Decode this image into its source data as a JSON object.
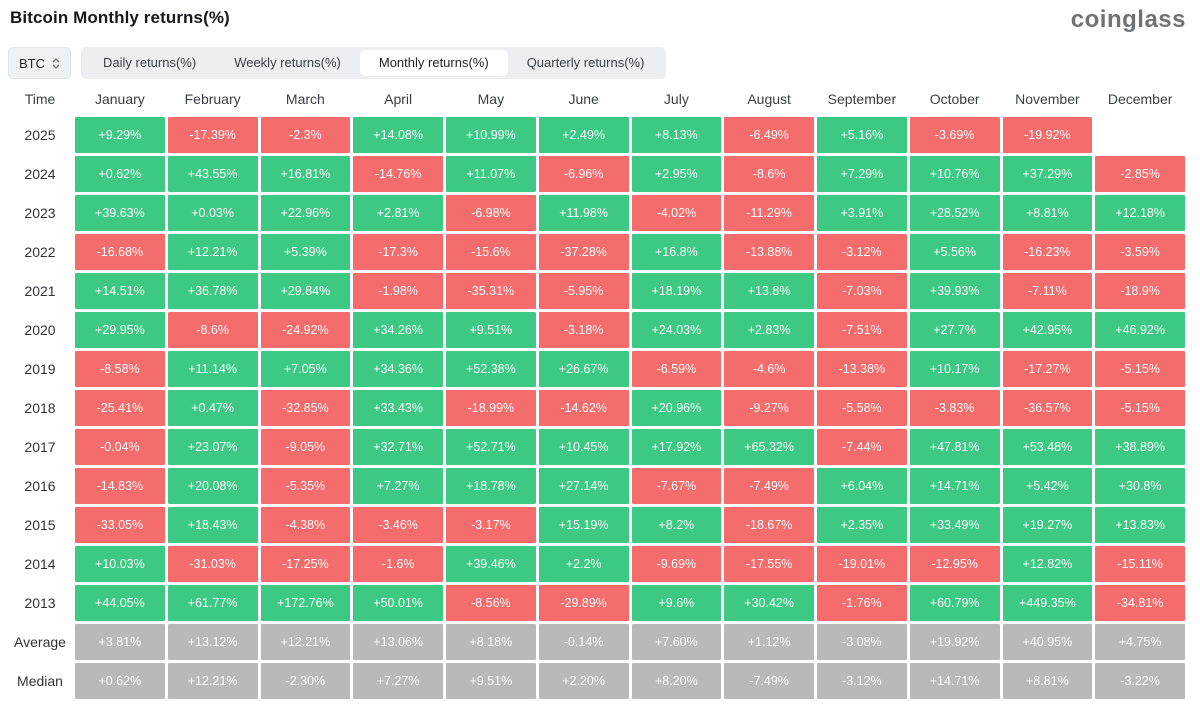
{
  "page": {
    "title": "Bitcoin Monthly returns(%)",
    "logo": "coinglass"
  },
  "controls": {
    "symbol_select": "BTC",
    "tabs": [
      {
        "label": "Daily returns(%)",
        "active": false
      },
      {
        "label": "Weekly returns(%)",
        "active": false
      },
      {
        "label": "Monthly returns(%)",
        "active": true
      },
      {
        "label": "Quarterly returns(%)",
        "active": false
      }
    ]
  },
  "colors": {
    "positive": "#3dc983",
    "negative": "#f56c6c",
    "summary": "#b9b9b9",
    "tabbar_bg": "#eceef1"
  },
  "chart_data": {
    "type": "heatmap",
    "title": "Bitcoin Monthly returns(%)",
    "columns": [
      "Time",
      "January",
      "February",
      "March",
      "April",
      "May",
      "June",
      "July",
      "August",
      "September",
      "October",
      "November",
      "December"
    ],
    "legend": "green = positive monthly return, red = negative monthly return, gray = summary rows",
    "rows": [
      {
        "label": "2025",
        "type": "year",
        "values": [
          "+9.29%",
          "-17.39%",
          "-2.3%",
          "+14.08%",
          "+10.99%",
          "+2.49%",
          "+8.13%",
          "-6.49%",
          "+5.16%",
          "-3.69%",
          "-19.92%",
          ""
        ]
      },
      {
        "label": "2024",
        "type": "year",
        "values": [
          "+0.62%",
          "+43.55%",
          "+16.81%",
          "-14.76%",
          "+11.07%",
          "-6.96%",
          "+2.95%",
          "-8.6%",
          "+7.29%",
          "+10.76%",
          "+37.29%",
          "-2.85%"
        ]
      },
      {
        "label": "2023",
        "type": "year",
        "values": [
          "+39.63%",
          "+0.03%",
          "+22.96%",
          "+2.81%",
          "-6.98%",
          "+11.98%",
          "-4.02%",
          "-11.29%",
          "+3.91%",
          "+28.52%",
          "+8.81%",
          "+12.18%"
        ]
      },
      {
        "label": "2022",
        "type": "year",
        "values": [
          "-16.68%",
          "+12.21%",
          "+5.39%",
          "-17.3%",
          "-15.6%",
          "-37.28%",
          "+16.8%",
          "-13.88%",
          "-3.12%",
          "+5.56%",
          "-16.23%",
          "-3.59%"
        ]
      },
      {
        "label": "2021",
        "type": "year",
        "values": [
          "+14.51%",
          "+36.78%",
          "+29.84%",
          "-1.98%",
          "-35.31%",
          "-5.95%",
          "+18.19%",
          "+13.8%",
          "-7.03%",
          "+39.93%",
          "-7.11%",
          "-18.9%"
        ]
      },
      {
        "label": "2020",
        "type": "year",
        "values": [
          "+29.95%",
          "-8.6%",
          "-24.92%",
          "+34.26%",
          "+9.51%",
          "-3.18%",
          "+24.03%",
          "+2.83%",
          "-7.51%",
          "+27.7%",
          "+42.95%",
          "+46.92%"
        ]
      },
      {
        "label": "2019",
        "type": "year",
        "values": [
          "-8.58%",
          "+11.14%",
          "+7.05%",
          "+34.36%",
          "+52.38%",
          "+26.67%",
          "-6.59%",
          "-4.6%",
          "-13.38%",
          "+10.17%",
          "-17.27%",
          "-5.15%"
        ]
      },
      {
        "label": "2018",
        "type": "year",
        "values": [
          "-25.41%",
          "+0.47%",
          "-32.85%",
          "+33.43%",
          "-18.99%",
          "-14.62%",
          "+20.96%",
          "-9.27%",
          "-5.58%",
          "-3.83%",
          "-36.57%",
          "-5.15%"
        ]
      },
      {
        "label": "2017",
        "type": "year",
        "values": [
          "-0.04%",
          "+23.07%",
          "-9.05%",
          "+32.71%",
          "+52.71%",
          "+10.45%",
          "+17.92%",
          "+65.32%",
          "-7.44%",
          "+47.81%",
          "+53.48%",
          "+38.89%"
        ]
      },
      {
        "label": "2016",
        "type": "year",
        "values": [
          "-14.83%",
          "+20.08%",
          "-5.35%",
          "+7.27%",
          "+18.78%",
          "+27.14%",
          "-7.67%",
          "-7.49%",
          "+6.04%",
          "+14.71%",
          "+5.42%",
          "+30.8%"
        ]
      },
      {
        "label": "2015",
        "type": "year",
        "values": [
          "-33.05%",
          "+18.43%",
          "-4.38%",
          "-3.46%",
          "-3.17%",
          "+15.19%",
          "+8.2%",
          "-18.67%",
          "+2.35%",
          "+33.49%",
          "+19.27%",
          "+13.83%"
        ]
      },
      {
        "label": "2014",
        "type": "year",
        "values": [
          "+10.03%",
          "-31.03%",
          "-17.25%",
          "-1.6%",
          "+39.46%",
          "+2.2%",
          "-9.69%",
          "-17.55%",
          "-19.01%",
          "-12.95%",
          "+12.82%",
          "-15.11%"
        ]
      },
      {
        "label": "2013",
        "type": "year",
        "values": [
          "+44.05%",
          "+61.77%",
          "+172.76%",
          "+50.01%",
          "-8.56%",
          "-29.89%",
          "+9.6%",
          "+30.42%",
          "-1.76%",
          "+60.79%",
          "+449.35%",
          "-34.81%"
        ]
      },
      {
        "label": "Average",
        "type": "summary",
        "values": [
          "+3.81%",
          "+13.12%",
          "+12.21%",
          "+13.06%",
          "+8.18%",
          "-0.14%",
          "+7.60%",
          "+1.12%",
          "-3.08%",
          "+19.92%",
          "+40.95%",
          "+4.75%"
        ]
      },
      {
        "label": "Median",
        "type": "summary",
        "values": [
          "+0.62%",
          "+12.21%",
          "-2.30%",
          "+7.27%",
          "+9.51%",
          "+2.20%",
          "+8.20%",
          "-7.49%",
          "-3.12%",
          "+14.71%",
          "+8.81%",
          "-3.22%"
        ]
      }
    ]
  }
}
